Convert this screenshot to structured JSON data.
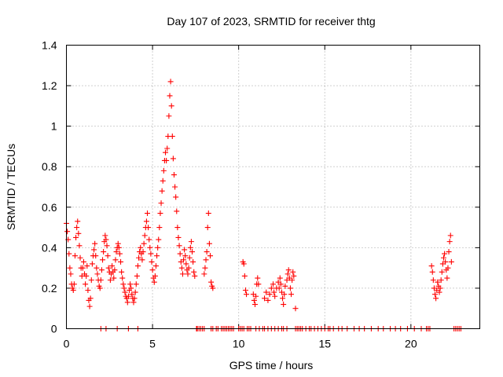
{
  "chart_data": {
    "type": "scatter",
    "title": "Day 107 of 2023, SRMTID for receiver thtg",
    "xlabel": "GPS time / hours",
    "ylabel": "SRMTID / TECUs",
    "xlim": [
      0,
      24
    ],
    "ylim": [
      0,
      1.4
    ],
    "xticks": [
      0,
      5,
      10,
      15,
      20
    ],
    "xtick_labels": [
      "0",
      "5",
      "10",
      "15",
      "20"
    ],
    "yticks": [
      0,
      0.2,
      0.4,
      0.6,
      0.8,
      1.0,
      1.2,
      1.4
    ],
    "ytick_labels": [
      "0",
      "0.2",
      "0.4",
      "0.6",
      "0.8",
      "1",
      "1.2",
      "1.4"
    ],
    "grid": true,
    "marker": "plus",
    "color": "#ff0000",
    "series": [
      {
        "name": "SRMTID",
        "points": [
          [
            0.0,
            0.52
          ],
          [
            0.05,
            0.48
          ],
          [
            0.1,
            0.44
          ],
          [
            0.15,
            0.37
          ],
          [
            0.2,
            0.3
          ],
          [
            0.25,
            0.27
          ],
          [
            0.3,
            0.22
          ],
          [
            0.35,
            0.2
          ],
          [
            0.4,
            0.19
          ],
          [
            0.45,
            0.22
          ],
          [
            0.5,
            0.36
          ],
          [
            0.55,
            0.45
          ],
          [
            0.6,
            0.5
          ],
          [
            0.65,
            0.53
          ],
          [
            0.7,
            0.47
          ],
          [
            0.75,
            0.41
          ],
          [
            0.8,
            0.35
          ],
          [
            0.85,
            0.3
          ],
          [
            0.9,
            0.26
          ],
          [
            0.95,
            0.3
          ],
          [
            1.0,
            0.33
          ],
          [
            1.05,
            0.27
          ],
          [
            1.1,
            0.22
          ],
          [
            1.15,
            0.26
          ],
          [
            1.2,
            0.31
          ],
          [
            1.25,
            0.19
          ],
          [
            1.3,
            0.14
          ],
          [
            1.35,
            0.11
          ],
          [
            1.4,
            0.15
          ],
          [
            1.45,
            0.24
          ],
          [
            1.5,
            0.32
          ],
          [
            1.55,
            0.36
          ],
          [
            1.6,
            0.39
          ],
          [
            1.65,
            0.42
          ],
          [
            1.7,
            0.36
          ],
          [
            1.75,
            0.3
          ],
          [
            1.8,
            0.27
          ],
          [
            1.85,
            0.24
          ],
          [
            1.9,
            0.21
          ],
          [
            1.95,
            0.2
          ],
          [
            2.0,
            0.24
          ],
          [
            2.05,
            0.29
          ],
          [
            2.1,
            0.34
          ],
          [
            2.15,
            0.38
          ],
          [
            2.2,
            0.43
          ],
          [
            2.25,
            0.46
          ],
          [
            2.3,
            0.44
          ],
          [
            2.35,
            0.41
          ],
          [
            2.4,
            0.36
          ],
          [
            2.45,
            0.3
          ],
          [
            2.5,
            0.28
          ],
          [
            2.55,
            0.24
          ],
          [
            2.6,
            0.27
          ],
          [
            2.65,
            0.31
          ],
          [
            2.7,
            0.28
          ],
          [
            2.75,
            0.25
          ],
          [
            2.8,
            0.29
          ],
          [
            2.85,
            0.34
          ],
          [
            2.9,
            0.38
          ],
          [
            2.95,
            0.4
          ],
          [
            3.0,
            0.42
          ],
          [
            3.05,
            0.4
          ],
          [
            3.1,
            0.37
          ],
          [
            3.15,
            0.33
          ],
          [
            3.2,
            0.28
          ],
          [
            3.25,
            0.25
          ],
          [
            3.3,
            0.22
          ],
          [
            3.35,
            0.2
          ],
          [
            3.4,
            0.18
          ],
          [
            3.45,
            0.16
          ],
          [
            3.5,
            0.15
          ],
          [
            3.55,
            0.13
          ],
          [
            3.6,
            0.16
          ],
          [
            3.65,
            0.19
          ],
          [
            3.7,
            0.22
          ],
          [
            3.75,
            0.2
          ],
          [
            3.8,
            0.17
          ],
          [
            3.85,
            0.15
          ],
          [
            3.9,
            0.13
          ],
          [
            3.95,
            0.15
          ],
          [
            4.0,
            0.18
          ],
          [
            4.05,
            0.22
          ],
          [
            4.1,
            0.26
          ],
          [
            4.15,
            0.31
          ],
          [
            4.2,
            0.35
          ],
          [
            4.25,
            0.38
          ],
          [
            4.3,
            0.4
          ],
          [
            4.35,
            0.37
          ],
          [
            4.4,
            0.34
          ],
          [
            4.45,
            0.38
          ],
          [
            4.5,
            0.42
          ],
          [
            4.55,
            0.46
          ],
          [
            4.6,
            0.5
          ],
          [
            4.65,
            0.53
          ],
          [
            4.7,
            0.57
          ],
          [
            4.75,
            0.5
          ],
          [
            4.8,
            0.44
          ],
          [
            4.85,
            0.4
          ],
          [
            4.9,
            0.37
          ],
          [
            4.95,
            0.33
          ],
          [
            5.0,
            0.29
          ],
          [
            5.05,
            0.25
          ],
          [
            5.1,
            0.23
          ],
          [
            5.15,
            0.26
          ],
          [
            5.2,
            0.31
          ],
          [
            5.25,
            0.36
          ],
          [
            5.3,
            0.4
          ],
          [
            5.35,
            0.44
          ],
          [
            5.4,
            0.5
          ],
          [
            5.45,
            0.57
          ],
          [
            5.5,
            0.62
          ],
          [
            5.55,
            0.68
          ],
          [
            5.6,
            0.73
          ],
          [
            5.65,
            0.78
          ],
          [
            5.7,
            0.83
          ],
          [
            5.75,
            0.87
          ],
          [
            5.8,
            0.83
          ],
          [
            5.85,
            0.89
          ],
          [
            5.9,
            0.95
          ],
          [
            5.95,
            1.05
          ],
          [
            6.0,
            1.15
          ],
          [
            6.05,
            1.22
          ],
          [
            6.1,
            1.1
          ],
          [
            6.15,
            0.95
          ],
          [
            6.2,
            0.84
          ],
          [
            6.25,
            0.76
          ],
          [
            6.3,
            0.7
          ],
          [
            6.35,
            0.65
          ],
          [
            6.4,
            0.58
          ],
          [
            6.45,
            0.5
          ],
          [
            6.5,
            0.45
          ],
          [
            6.55,
            0.41
          ],
          [
            6.6,
            0.37
          ],
          [
            6.65,
            0.33
          ],
          [
            6.7,
            0.3
          ],
          [
            6.75,
            0.27
          ],
          [
            6.8,
            0.34
          ],
          [
            6.85,
            0.39
          ],
          [
            6.9,
            0.36
          ],
          [
            6.95,
            0.32
          ],
          [
            7.0,
            0.29
          ],
          [
            7.05,
            0.27
          ],
          [
            7.1,
            0.3
          ],
          [
            7.15,
            0.35
          ],
          [
            7.2,
            0.4
          ],
          [
            7.25,
            0.43
          ],
          [
            7.3,
            0.38
          ],
          [
            7.35,
            0.33
          ],
          [
            7.4,
            0.28
          ],
          [
            7.45,
            0.26
          ],
          [
            8.0,
            0.27
          ],
          [
            8.05,
            0.3
          ],
          [
            8.1,
            0.34
          ],
          [
            8.15,
            0.38
          ],
          [
            8.2,
            0.5
          ],
          [
            8.25,
            0.57
          ],
          [
            8.3,
            0.42
          ],
          [
            8.35,
            0.36
          ],
          [
            8.4,
            0.23
          ],
          [
            8.45,
            0.21
          ],
          [
            8.5,
            0.2
          ],
          [
            10.25,
            0.33
          ],
          [
            10.3,
            0.32
          ],
          [
            10.35,
            0.26
          ],
          [
            10.4,
            0.19
          ],
          [
            10.45,
            0.17
          ],
          [
            10.85,
            0.17
          ],
          [
            10.9,
            0.14
          ],
          [
            10.95,
            0.12
          ],
          [
            11.0,
            0.16
          ],
          [
            11.05,
            0.22
          ],
          [
            11.1,
            0.25
          ],
          [
            11.15,
            0.22
          ],
          [
            11.5,
            0.15
          ],
          [
            11.6,
            0.18
          ],
          [
            11.7,
            0.14
          ],
          [
            11.8,
            0.17
          ],
          [
            11.9,
            0.2
          ],
          [
            12.0,
            0.22
          ],
          [
            12.05,
            0.18
          ],
          [
            12.1,
            0.16
          ],
          [
            12.2,
            0.2
          ],
          [
            12.3,
            0.23
          ],
          [
            12.35,
            0.2
          ],
          [
            12.4,
            0.25
          ],
          [
            12.45,
            0.22
          ],
          [
            12.5,
            0.18
          ],
          [
            12.55,
            0.15
          ],
          [
            12.6,
            0.12
          ],
          [
            12.65,
            0.17
          ],
          [
            12.7,
            0.21
          ],
          [
            12.8,
            0.24
          ],
          [
            12.85,
            0.27
          ],
          [
            12.9,
            0.29
          ],
          [
            12.95,
            0.25
          ],
          [
            13.0,
            0.2
          ],
          [
            13.05,
            0.17
          ],
          [
            13.1,
            0.24
          ],
          [
            13.15,
            0.28
          ],
          [
            13.2,
            0.26
          ],
          [
            13.3,
            0.1
          ],
          [
            21.2,
            0.31
          ],
          [
            21.25,
            0.28
          ],
          [
            21.3,
            0.24
          ],
          [
            21.35,
            0.2
          ],
          [
            21.4,
            0.17
          ],
          [
            21.45,
            0.15
          ],
          [
            21.5,
            0.19
          ],
          [
            21.55,
            0.23
          ],
          [
            21.6,
            0.21
          ],
          [
            21.65,
            0.18
          ],
          [
            21.7,
            0.2
          ],
          [
            21.75,
            0.24
          ],
          [
            21.8,
            0.28
          ],
          [
            21.85,
            0.32
          ],
          [
            21.9,
            0.35
          ],
          [
            21.95,
            0.37
          ],
          [
            22.0,
            0.33
          ],
          [
            22.05,
            0.29
          ],
          [
            22.1,
            0.25
          ],
          [
            22.15,
            0.3
          ],
          [
            22.2,
            0.38
          ],
          [
            22.25,
            0.43
          ],
          [
            22.3,
            0.46
          ],
          [
            22.35,
            0.33
          ],
          [
            2.0,
            0.0
          ],
          [
            2.3,
            0.0
          ],
          [
            2.95,
            0.0
          ],
          [
            3.6,
            0.0
          ],
          [
            4.15,
            0.0
          ],
          [
            7.55,
            0.0
          ],
          [
            7.6,
            0.0
          ],
          [
            7.7,
            0.0
          ],
          [
            7.8,
            0.0
          ],
          [
            7.9,
            0.0
          ],
          [
            8.0,
            0.0
          ],
          [
            8.4,
            0.0
          ],
          [
            8.5,
            0.0
          ],
          [
            8.7,
            0.0
          ],
          [
            8.8,
            0.0
          ],
          [
            9.0,
            0.0
          ],
          [
            9.1,
            0.0
          ],
          [
            9.2,
            0.0
          ],
          [
            9.3,
            0.0
          ],
          [
            9.4,
            0.0
          ],
          [
            9.5,
            0.0
          ],
          [
            9.6,
            0.0
          ],
          [
            9.7,
            0.0
          ],
          [
            10.0,
            0.0
          ],
          [
            10.1,
            0.0
          ],
          [
            10.2,
            0.0
          ],
          [
            10.3,
            0.0
          ],
          [
            10.5,
            0.0
          ],
          [
            10.6,
            0.0
          ],
          [
            10.7,
            0.0
          ],
          [
            11.0,
            0.0
          ],
          [
            11.2,
            0.0
          ],
          [
            11.4,
            0.0
          ],
          [
            11.5,
            0.0
          ],
          [
            11.7,
            0.0
          ],
          [
            11.9,
            0.0
          ],
          [
            12.1,
            0.0
          ],
          [
            12.3,
            0.0
          ],
          [
            12.5,
            0.0
          ],
          [
            12.6,
            0.0
          ],
          [
            12.8,
            0.0
          ],
          [
            13.3,
            0.0
          ],
          [
            13.4,
            0.0
          ],
          [
            13.5,
            0.0
          ],
          [
            13.6,
            0.0
          ],
          [
            13.7,
            0.0
          ],
          [
            13.9,
            0.0
          ],
          [
            14.1,
            0.0
          ],
          [
            14.2,
            0.0
          ],
          [
            14.4,
            0.0
          ],
          [
            14.6,
            0.0
          ],
          [
            14.8,
            0.0
          ],
          [
            15.0,
            0.0
          ],
          [
            15.2,
            0.0
          ],
          [
            15.3,
            0.0
          ],
          [
            15.5,
            0.0
          ],
          [
            15.8,
            0.0
          ],
          [
            16.0,
            0.0
          ],
          [
            16.3,
            0.0
          ],
          [
            16.7,
            0.0
          ],
          [
            17.0,
            0.0
          ],
          [
            17.3,
            0.0
          ],
          [
            17.7,
            0.0
          ],
          [
            18.1,
            0.0
          ],
          [
            18.4,
            0.0
          ],
          [
            18.8,
            0.0
          ],
          [
            19.1,
            0.0
          ],
          [
            19.4,
            0.0
          ],
          [
            19.8,
            0.0
          ],
          [
            20.2,
            0.0
          ],
          [
            20.6,
            0.0
          ],
          [
            20.9,
            0.0
          ],
          [
            21.0,
            0.0
          ],
          [
            21.1,
            0.0
          ],
          [
            22.5,
            0.0
          ],
          [
            22.6,
            0.0
          ],
          [
            22.7,
            0.0
          ],
          [
            22.8,
            0.0
          ],
          [
            22.9,
            0.0
          ]
        ]
      }
    ]
  }
}
